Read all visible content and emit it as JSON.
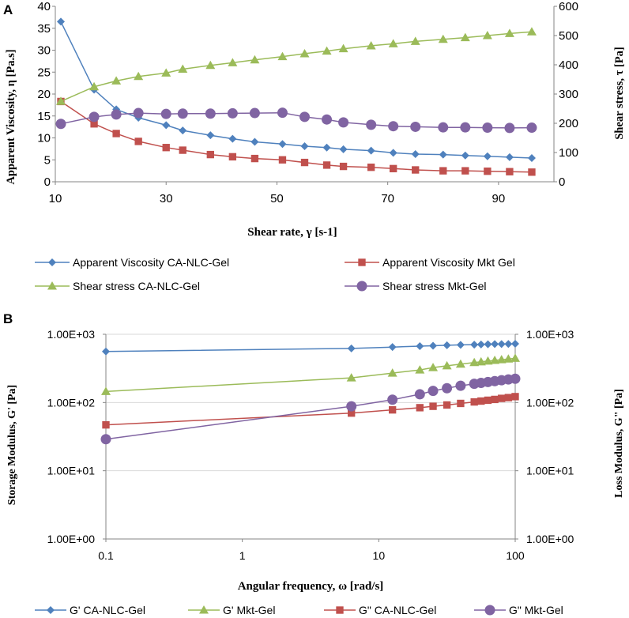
{
  "colors": {
    "blue": "#4f81bd",
    "red": "#c0504d",
    "green": "#9bbb59",
    "purple": "#8064a2",
    "axis": "#868686",
    "text": "#000000"
  },
  "chart_data": [
    {
      "panel_label": "A",
      "type": "line",
      "xlabel": "Shear rate, γ [s-1]",
      "ylabel": "Apparent Viscosity, η [Pa.s]",
      "y2label": "Shear stress, τ [Pa]",
      "xlim": [
        10,
        100
      ],
      "xticks": [
        10,
        30,
        50,
        70,
        90
      ],
      "xtick_labels": [
        "10",
        "30",
        "50",
        "70",
        "90"
      ],
      "ylim": [
        0,
        40
      ],
      "yticks": [
        0,
        5,
        10,
        15,
        20,
        25,
        30,
        35,
        40
      ],
      "ytick_labels": [
        "0",
        "5",
        "10",
        "15",
        "20",
        "25",
        "30",
        "35",
        "40"
      ],
      "y2lim": [
        0,
        600
      ],
      "y2ticks": [
        0,
        100,
        200,
        300,
        400,
        500,
        600
      ],
      "y2tick_labels": [
        "0",
        "100",
        "200",
        "300",
        "400",
        "500",
        "600"
      ],
      "legend_position": "bottom",
      "series": [
        {
          "name": "Apparent  Viscosity CA-NLC-Gel",
          "axis": "left",
          "color": "#4f81bd",
          "marker": "diamond",
          "x": [
            11,
            17,
            21,
            25,
            30,
            33,
            38,
            42,
            46,
            51,
            55,
            59,
            62,
            67,
            71,
            75,
            80,
            84,
            88,
            92,
            96
          ],
          "y": [
            36.5,
            21,
            16.5,
            14.6,
            12.9,
            11.7,
            10.6,
            9.8,
            9.1,
            8.6,
            8.1,
            7.8,
            7.4,
            7.1,
            6.6,
            6.3,
            6.2,
            6.0,
            5.8,
            5.6,
            5.4
          ]
        },
        {
          "name": "Apparent  Viscosity Mkt Gel",
          "axis": "left",
          "color": "#c0504d",
          "marker": "square",
          "x": [
            11,
            17,
            21,
            25,
            30,
            33,
            38,
            42,
            46,
            51,
            55,
            59,
            62,
            67,
            71,
            75,
            80,
            84,
            88,
            92,
            96
          ],
          "y": [
            18.3,
            13.2,
            11.0,
            9.2,
            7.8,
            7.2,
            6.2,
            5.7,
            5.3,
            5.0,
            4.4,
            3.8,
            3.5,
            3.3,
            3.0,
            2.7,
            2.5,
            2.5,
            2.4,
            2.3,
            2.2
          ]
        },
        {
          "name": "Shear stress  CA-NLC-Gel",
          "axis": "right",
          "color": "#9bbb59",
          "marker": "triangle",
          "x": [
            11,
            17,
            21,
            25,
            30,
            33,
            38,
            42,
            46,
            51,
            55,
            59,
            62,
            67,
            71,
            75,
            80,
            84,
            88,
            92,
            96
          ],
          "y": [
            275,
            325,
            345,
            360,
            372,
            385,
            398,
            407,
            417,
            428,
            438,
            447,
            455,
            465,
            472,
            480,
            487,
            493,
            500,
            507,
            513
          ]
        },
        {
          "name": "Shear stress  Mkt-Gel",
          "axis": "right",
          "color": "#8064a2",
          "marker": "circle",
          "x": [
            11,
            17,
            21,
            25,
            30,
            33,
            38,
            42,
            46,
            51,
            55,
            59,
            62,
            67,
            71,
            75,
            80,
            84,
            88,
            92,
            96
          ],
          "y": [
            198,
            222,
            230,
            235,
            232,
            233,
            233,
            234,
            235,
            236,
            222,
            213,
            203,
            195,
            190,
            188,
            186,
            186,
            185,
            184,
            185
          ]
        }
      ]
    },
    {
      "panel_label": "B",
      "type": "line",
      "xscale": "log",
      "yscale": "log",
      "xlabel": "Angular frequency, ω [rad/s]",
      "ylabel": "Storage Modulus, G' [Pa]",
      "y2label": "Loss Modulus, G\" [Pa]",
      "xlim": [
        0.1,
        100
      ],
      "xticks": [
        0.1,
        1,
        10,
        100
      ],
      "xtick_labels": [
        "0.1",
        "1",
        "10",
        "100"
      ],
      "ylim": [
        1,
        1000
      ],
      "yticks": [
        1,
        10,
        100,
        1000
      ],
      "ytick_labels": [
        "1.00E+00",
        "1.00E+01",
        "1.00E+02",
        "1.00E+03"
      ],
      "y2lim": [
        1,
        1000
      ],
      "y2ticks": [
        1,
        10,
        100,
        1000
      ],
      "y2tick_labels": [
        "1.00E+00",
        "1.00E+01",
        "1.00E+02",
        "1.00E+03"
      ],
      "legend_position": "bottom",
      "series": [
        {
          "name": "G' CA-NLC-Gel",
          "axis": "left",
          "color": "#4f81bd",
          "marker": "diamond",
          "x": [
            0.1,
            6.3,
            12.6,
            20,
            25,
            31.6,
            39.8,
            50.1,
            56.2,
            63.1,
            70.8,
            79.4,
            89.1,
            100
          ],
          "y": [
            560,
            620,
            650,
            670,
            680,
            690,
            700,
            705,
            710,
            715,
            718,
            720,
            722,
            725
          ]
        },
        {
          "name": "G' Mkt-Gel",
          "axis": "left",
          "color": "#9bbb59",
          "marker": "triangle",
          "x": [
            0.1,
            6.3,
            12.6,
            20,
            25,
            31.6,
            39.8,
            50.1,
            56.2,
            63.1,
            70.8,
            79.4,
            89.1,
            100
          ],
          "y": [
            145,
            230,
            270,
            300,
            325,
            345,
            365,
            385,
            395,
            405,
            415,
            425,
            435,
            445
          ]
        },
        {
          "name": "G\" CA-NLC-Gel",
          "axis": "right",
          "color": "#c0504d",
          "marker": "square",
          "x": [
            0.1,
            6.3,
            12.6,
            20,
            25,
            31.6,
            39.8,
            50.1,
            56.2,
            63.1,
            70.8,
            79.4,
            89.1,
            100
          ],
          "y": [
            47,
            70,
            78,
            84,
            88,
            92,
            97,
            102,
            105,
            108,
            111,
            115,
            118,
            122
          ]
        },
        {
          "name": "G\" Mkt-Gel",
          "axis": "right",
          "color": "#8064a2",
          "marker": "circle",
          "x": [
            0.1,
            6.3,
            12.6,
            20,
            25,
            31.6,
            39.8,
            50.1,
            56.2,
            63.1,
            70.8,
            79.4,
            89.1,
            100
          ],
          "y": [
            29,
            88,
            110,
            132,
            148,
            162,
            176,
            188,
            194,
            200,
            206,
            212,
            218,
            223
          ]
        }
      ]
    }
  ]
}
